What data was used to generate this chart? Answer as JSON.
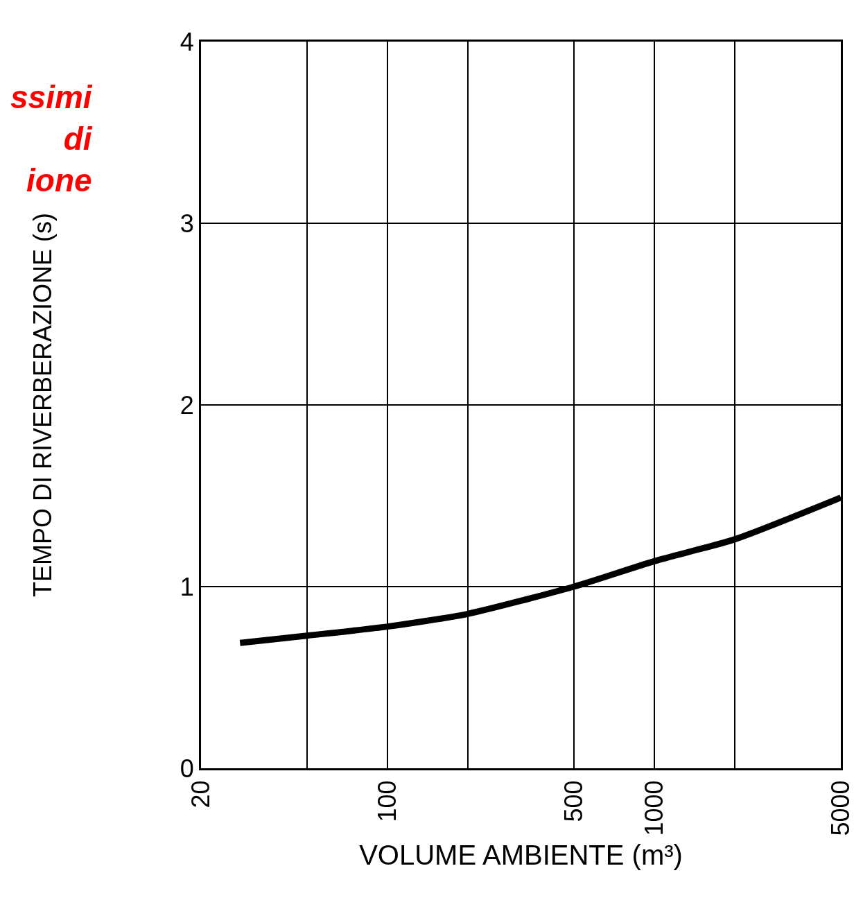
{
  "chart_data": {
    "type": "line",
    "xlabel": "VOLUME AMBIENTE (m³)",
    "ylabel": "TEMPO DI RIVERBERAZIONE (s)",
    "annotations": [
      "ssimi\ndi\nione"
    ],
    "x": [
      28,
      50,
      100,
      200,
      500,
      1000,
      2000,
      5000
    ],
    "series": [
      {
        "color": "#000000",
        "values": [
          0.69,
          0.73,
          0.78,
          0.85,
          1.0,
          1.14,
          1.26,
          1.49
        ]
      }
    ],
    "log": "x",
    "xlim": [
      20,
      5000
    ],
    "ylim": [
      0,
      4
    ],
    "xticks": [
      20,
      {
        "value": 50,
        "label": null
      },
      100,
      {
        "value": 200,
        "label": null
      },
      500,
      1000,
      {
        "value": 2000,
        "label": null
      },
      5000
    ],
    "yticks": [
      0,
      1,
      2,
      3,
      4
    ],
    "grid": true,
    "marker": "none",
    "line_style": "solid"
  }
}
